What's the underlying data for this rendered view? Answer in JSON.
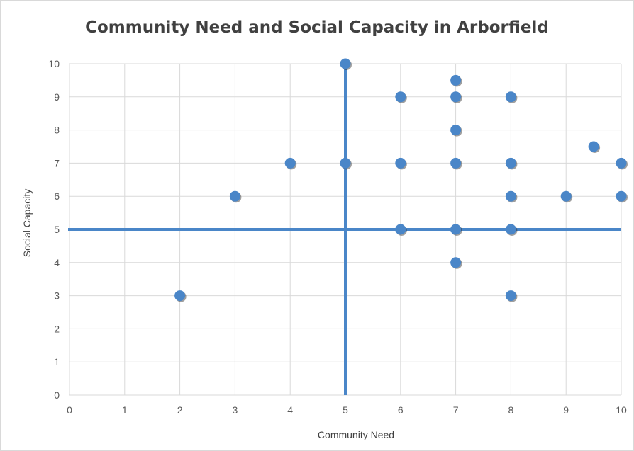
{
  "chart_data": {
    "type": "scatter",
    "title": "Community Need and Social Capacity in Arborfield",
    "xlabel": "Community Need",
    "ylabel": "Social Capacity",
    "xlim": [
      0,
      10
    ],
    "ylim": [
      0,
      10
    ],
    "x_ticks": [
      "0",
      "1",
      "2",
      "3",
      "4",
      "5",
      "6",
      "7",
      "8",
      "9",
      "10"
    ],
    "y_ticks": [
      "0",
      "1",
      "2",
      "3",
      "4",
      "5",
      "6",
      "7",
      "8",
      "9",
      "10"
    ],
    "grid": true,
    "reference_lines": [
      {
        "orientation": "vertical",
        "x": 5
      },
      {
        "orientation": "horizontal",
        "y": 5
      }
    ],
    "series": [
      {
        "color": "#4a86c8",
        "points": [
          {
            "x": 2,
            "y": 3
          },
          {
            "x": 3,
            "y": 6
          },
          {
            "x": 4,
            "y": 7
          },
          {
            "x": 5,
            "y": 10
          },
          {
            "x": 5,
            "y": 7
          },
          {
            "x": 6,
            "y": 9
          },
          {
            "x": 6,
            "y": 7
          },
          {
            "x": 6,
            "y": 5
          },
          {
            "x": 7,
            "y": 9.5
          },
          {
            "x": 7,
            "y": 9
          },
          {
            "x": 7,
            "y": 8
          },
          {
            "x": 7,
            "y": 7
          },
          {
            "x": 7,
            "y": 5
          },
          {
            "x": 7,
            "y": 4
          },
          {
            "x": 8,
            "y": 9
          },
          {
            "x": 8,
            "y": 7
          },
          {
            "x": 8,
            "y": 6
          },
          {
            "x": 8,
            "y": 5
          },
          {
            "x": 8,
            "y": 3
          },
          {
            "x": 9,
            "y": 6
          },
          {
            "x": 9.5,
            "y": 7.5
          },
          {
            "x": 10,
            "y": 7
          },
          {
            "x": 10,
            "y": 6
          }
        ]
      }
    ],
    "colors": {
      "grid": "#d9d9d9",
      "marker": "#4a86c8",
      "reference_line": "#4a86c8"
    }
  }
}
